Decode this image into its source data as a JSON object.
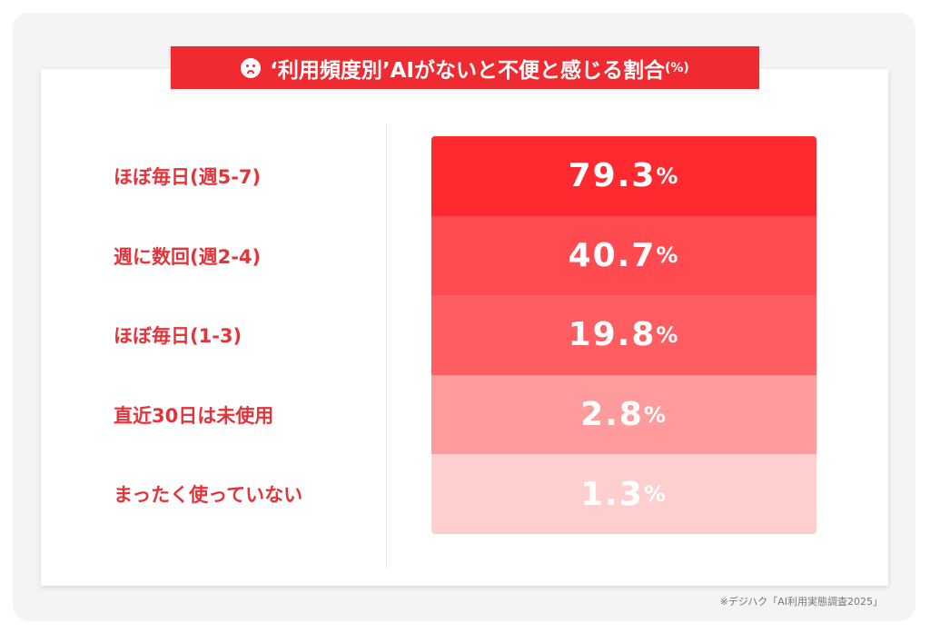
{
  "chart_data": {
    "type": "table",
    "title": "‘利用頻度別’AIがないと不便と感じる割合",
    "title_unit": "(%)",
    "categories": [
      "ほぼ毎日(週5-7)",
      "週に数回(週2-4)",
      "ほぼ毎日(1-3)",
      "直近30日は未使用",
      "まったく使っていない"
    ],
    "values": [
      79.3,
      40.7,
      19.8,
      2.8,
      1.3
    ],
    "unit": "%",
    "colors": [
      "#fe2a30",
      "#ff4a50",
      "#ff5d61",
      "#ff9b9d",
      "#ffcfd0"
    ]
  },
  "source": "※デジハク「AI利用実態調査2025」"
}
